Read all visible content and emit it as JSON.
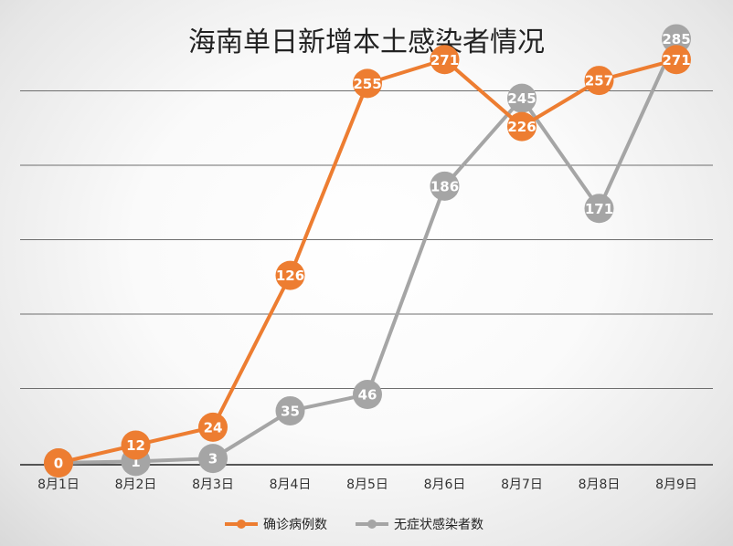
{
  "chart_data": {
    "type": "line",
    "title": "海南单日新增本土感染者情况",
    "categories": [
      "8月1日",
      "8月2日",
      "8月3日",
      "8月4日",
      "8月5日",
      "8月6日",
      "8月7日",
      "8月8日",
      "8月9日"
    ],
    "ylim": [
      0,
      300
    ],
    "grid": true,
    "legend_position": "bottom",
    "series": [
      {
        "name": "确诊病例数",
        "color": "#ED7D31",
        "values": [
          0,
          12,
          24,
          126,
          255,
          271,
          226,
          257,
          271
        ]
      },
      {
        "name": "无症状感染者数",
        "color": "#A5A5A5",
        "values": [
          0,
          1,
          3,
          35,
          46,
          186,
          245,
          171,
          285
        ]
      }
    ]
  }
}
